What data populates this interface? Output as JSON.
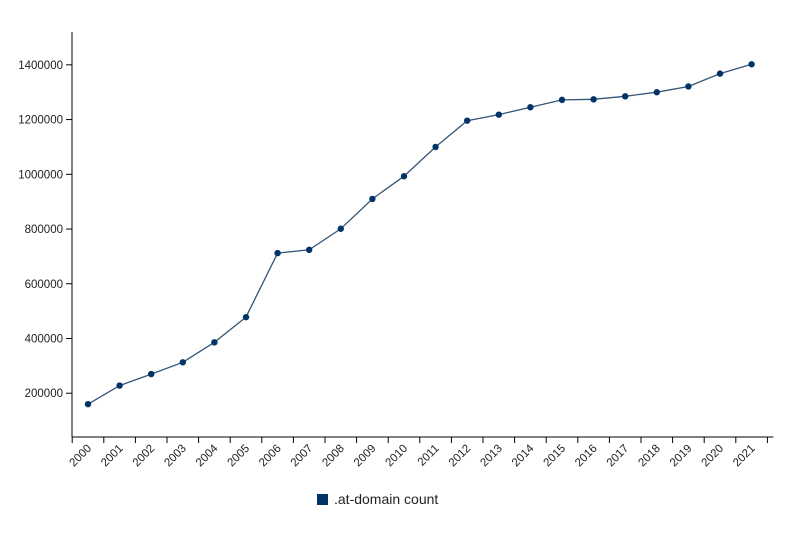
{
  "chart_data": {
    "type": "line",
    "title": "",
    "xlabel": "",
    "ylabel": "",
    "categories": [
      "2000",
      "2001",
      "2002",
      "2003",
      "2004",
      "2005",
      "2006",
      "2007",
      "2008",
      "2009",
      "2010",
      "2011",
      "2012",
      "2013",
      "2014",
      "2015",
      "2016",
      "2017",
      "2018",
      "2019",
      "2020",
      "2021"
    ],
    "series": [
      {
        "name": ".at-domain count",
        "color": "#335577",
        "point_color": "#003366",
        "values": [
          160000,
          228000,
          270000,
          313000,
          386000,
          478000,
          712000,
          724000,
          801000,
          910000,
          993000,
          1100000,
          1196000,
          1218000,
          1245000,
          1272000,
          1274000,
          1285000,
          1300000,
          1321000,
          1368000,
          1402000
        ]
      }
    ],
    "y_ticks": [
      200000,
      400000,
      600000,
      800000,
      1000000,
      1200000,
      1400000
    ],
    "ylim": [
      40000,
      1520000
    ],
    "grid": false,
    "legend_position": "bottom-center"
  },
  "legend": {
    "label": ".at-domain count",
    "color": "#003366"
  }
}
